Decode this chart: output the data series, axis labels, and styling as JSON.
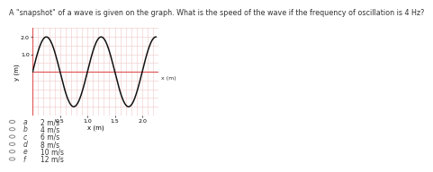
{
  "title": "A \"snapshot\" of a wave is given on the graph. What is the speed of the wave if the frequency of oscillation is 4 Hz?",
  "title_fontsize": 5.8,
  "graph_xlabel": "x (m)",
  "graph_ylabel": "y (m)",
  "xlim": [
    0,
    2.3
  ],
  "ylim": [
    -2.5,
    2.5
  ],
  "xticks": [
    0.5,
    1.0,
    1.5,
    2.0
  ],
  "yticks": [
    1.0,
    2.0
  ],
  "wave_amplitude": 2.0,
  "wave_wavelength": 1.0,
  "wave_color": "#111111",
  "grid_color": "#f0c8c8",
  "axis_line_color": "#e05050",
  "choices": [
    "a",
    "b",
    "c",
    "d",
    "e",
    "f"
  ],
  "answers": [
    "2 m/s",
    "4 m/s",
    "6 m/s",
    "8 m/s",
    "10 m/s",
    "12 m/s"
  ],
  "choice_fontsize": 5.5,
  "background_color": "#ffffff"
}
